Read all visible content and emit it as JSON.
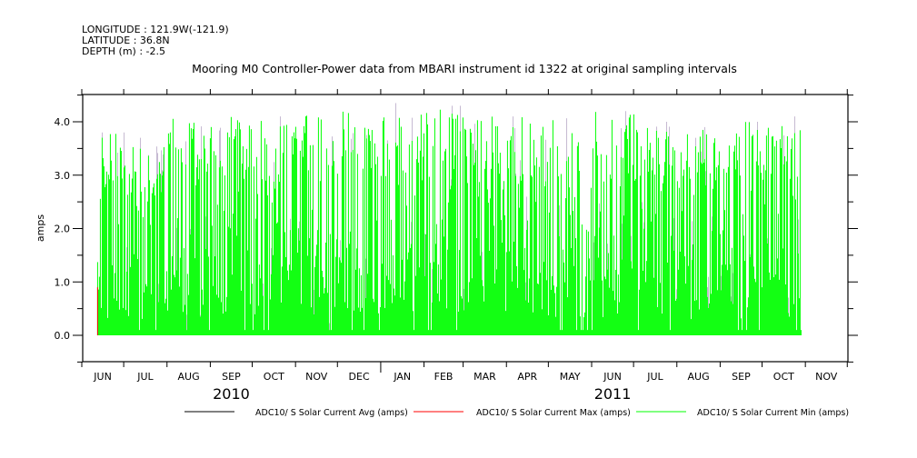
{
  "header": {
    "longitude": "LONGITUDE : 121.9W(-121.9)",
    "latitude": "LATITUDE : 36.8N",
    "depth": "DEPTH (m) : -2.5"
  },
  "chart_data": {
    "type": "line",
    "title": "Mooring M0 Controller-Power data from MBARI instrument id 1322 at original sampling intervals",
    "xlabel": "",
    "ylabel": "amps",
    "ylim": [
      -0.5,
      4.5
    ],
    "xlim": [
      "2010-06-01",
      "2011-11-30"
    ],
    "y_ticks": [
      "0.0",
      "1.0",
      "2.0",
      "3.0",
      "4.0"
    ],
    "x_ticks": [
      "JUN",
      "JUL",
      "AUG",
      "SEP",
      "OCT",
      "NOV",
      "DEC",
      "JAN",
      "FEB",
      "MAR",
      "APR",
      "MAY",
      "JUN",
      "JUL",
      "AUG",
      "SEP",
      "OCT",
      "NOV"
    ],
    "years": [
      {
        "label": "2010",
        "month_index": 3
      },
      {
        "label": "2011",
        "month_index": 12
      }
    ],
    "data_start": "2010-06-12",
    "data_end": "2011-10-29",
    "monthly_peak_amps": [
      3.8,
      3.7,
      4.1,
      4.1,
      4.1,
      4.25,
      4.2,
      4.35,
      4.3,
      4.1,
      4.1,
      4.1,
      4.2,
      4.0,
      3.9,
      4.0,
      4.1
    ],
    "series": [
      {
        "name": "ADC10/ S Solar Current Avg (amps)",
        "color": "#000000"
      },
      {
        "name": "ADC10/ S Solar Current Max (amps)",
        "color": "#ff0000"
      },
      {
        "name": "ADC10/ S Solar Current Min (amps)",
        "color": "#00ff00"
      }
    ],
    "grid": false,
    "legend_position": "bottom"
  }
}
